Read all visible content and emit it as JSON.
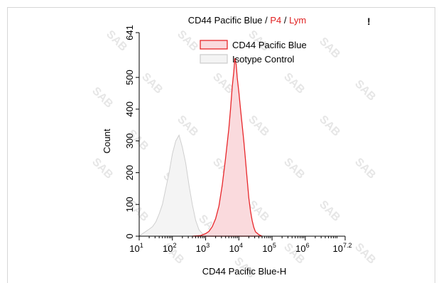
{
  "chart_data": {
    "type": "area",
    "title_parts": [
      {
        "text": "CD44 Pacific Blue",
        "color": "#000000"
      },
      {
        "text": " / ",
        "color": "#000000"
      },
      {
        "text": "P4",
        "color": "#e02020"
      },
      {
        "text": " / ",
        "color": "#000000"
      },
      {
        "text": "Lym",
        "color": "#e02020"
      }
    ],
    "corner_mark": "!",
    "xlabel": "CD44 Pacific Blue-H",
    "ylabel": "Count",
    "x_scale": "log",
    "xlim_log10": [
      1,
      7.2
    ],
    "ylim": [
      0,
      641
    ],
    "x_ticks": [
      {
        "base": "10",
        "exp": "1",
        "value": 1
      },
      {
        "base": "10",
        "exp": "2",
        "value": 2
      },
      {
        "base": "10",
        "exp": "3",
        "value": 3
      },
      {
        "base": "10",
        "exp": "4",
        "value": 4
      },
      {
        "base": "10",
        "exp": "5",
        "value": 5
      },
      {
        "base": "10",
        "exp": "6",
        "value": 6
      },
      {
        "base": "10",
        "exp": "7.2",
        "value": 7.2
      }
    ],
    "y_ticks": [
      "0",
      "100",
      "200",
      "300",
      "400",
      "500",
      "641"
    ],
    "y_tick_values": [
      0,
      100,
      200,
      300,
      400,
      500,
      641
    ],
    "legend_position": "top-right",
    "series": [
      {
        "name": "CD44 Pacific Blue",
        "stroke": "#e8262a",
        "fill": "#fadadd",
        "points_log10x": [
          [
            2.6,
            0
          ],
          [
            2.85,
            2
          ],
          [
            3.0,
            8
          ],
          [
            3.1,
            15
          ],
          [
            3.2,
            30
          ],
          [
            3.3,
            55
          ],
          [
            3.4,
            95
          ],
          [
            3.5,
            160
          ],
          [
            3.6,
            245
          ],
          [
            3.7,
            340
          ],
          [
            3.75,
            400
          ],
          [
            3.8,
            470
          ],
          [
            3.85,
            520
          ],
          [
            3.88,
            560
          ],
          [
            3.92,
            540
          ],
          [
            3.95,
            500
          ],
          [
            4.0,
            455
          ],
          [
            4.05,
            400
          ],
          [
            4.1,
            350
          ],
          [
            4.15,
            300
          ],
          [
            4.2,
            240
          ],
          [
            4.25,
            180
          ],
          [
            4.3,
            120
          ],
          [
            4.35,
            80
          ],
          [
            4.4,
            50
          ],
          [
            4.45,
            28
          ],
          [
            4.5,
            14
          ],
          [
            4.6,
            5
          ],
          [
            4.7,
            0
          ]
        ]
      },
      {
        "name": "Isotype Control",
        "stroke": "#cfcfcf",
        "fill": "#f4f4f4",
        "points_log10x": [
          [
            1.0,
            0
          ],
          [
            1.1,
            8
          ],
          [
            1.2,
            15
          ],
          [
            1.3,
            22
          ],
          [
            1.4,
            30
          ],
          [
            1.5,
            45
          ],
          [
            1.6,
            70
          ],
          [
            1.7,
            100
          ],
          [
            1.8,
            150
          ],
          [
            1.9,
            200
          ],
          [
            2.0,
            260
          ],
          [
            2.1,
            300
          ],
          [
            2.2,
            318
          ],
          [
            2.3,
            280
          ],
          [
            2.4,
            230
          ],
          [
            2.5,
            160
          ],
          [
            2.6,
            100
          ],
          [
            2.7,
            50
          ],
          [
            2.8,
            20
          ],
          [
            2.9,
            8
          ],
          [
            3.0,
            2
          ],
          [
            3.1,
            0
          ]
        ]
      }
    ]
  },
  "watermark": "SAB"
}
